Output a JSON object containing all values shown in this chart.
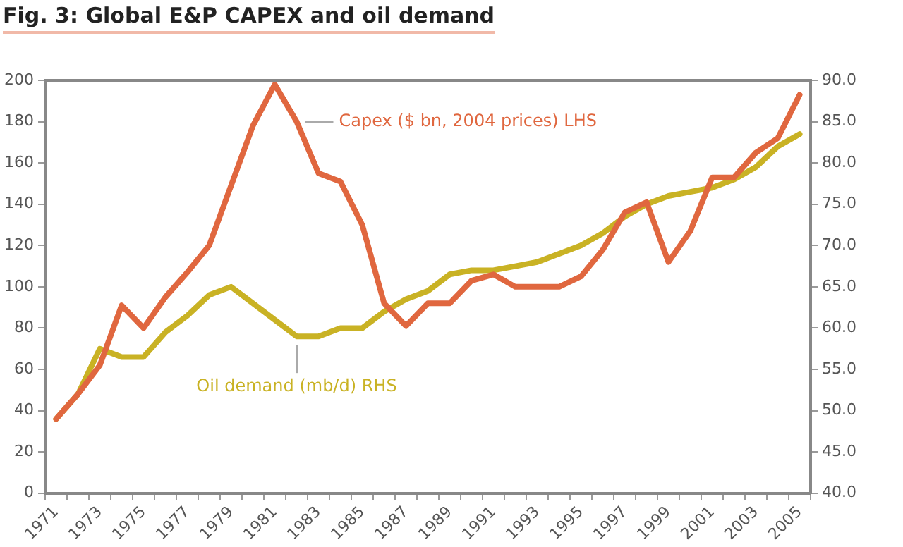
{
  "chart_data": {
    "type": "line",
    "title": "Fig. 3: Global E&P CAPEX and oil demand",
    "categories": [
      "1971",
      null,
      "1973",
      null,
      "1975",
      null,
      "1977",
      null,
      "1979",
      null,
      "1981",
      null,
      "1983",
      null,
      "1985",
      null,
      "1987",
      null,
      "1989",
      null,
      "1991",
      null,
      "1993",
      null,
      "1995",
      null,
      "1997",
      null,
      "1999",
      null,
      "2001",
      null,
      "2003",
      null,
      "2005"
    ],
    "series": [
      {
        "name": "Capex ($ bn, 2004 prices) LHS",
        "color": "#e0673f",
        "axis": "y",
        "values": [
          36,
          48,
          62,
          91,
          80,
          95,
          107,
          120,
          149,
          178,
          198,
          180,
          155,
          151,
          130,
          92,
          81,
          92,
          92,
          103,
          106,
          100,
          100,
          100,
          105,
          118,
          136,
          141,
          112,
          127,
          153,
          153,
          165,
          172,
          193
        ]
      },
      {
        "name": "Oil demand (mb/d) RHS",
        "color": "#c9b224",
        "axis": "y2",
        "values": [
          49,
          52,
          57.5,
          56.5,
          56.5,
          59.5,
          61.5,
          64,
          65,
          63,
          61,
          59,
          59,
          60,
          60,
          62,
          63.5,
          64.5,
          66.5,
          67,
          67,
          67.5,
          68,
          69,
          70,
          71.5,
          73.5,
          75,
          76,
          76.5,
          77,
          78,
          79.5,
          82,
          83.5
        ]
      }
    ],
    "ylim": [
      0,
      200
    ],
    "yticks": [
      0,
      20,
      40,
      60,
      80,
      100,
      120,
      140,
      160,
      180,
      200
    ],
    "y2lim": [
      40,
      90
    ],
    "y2ticks": [
      {
        "value": 40,
        "label": "40.0"
      },
      {
        "value": 45,
        "label": "45.0"
      },
      {
        "value": 50,
        "label": "50.0"
      },
      {
        "value": 55,
        "label": "55.0"
      },
      {
        "value": 60,
        "label": "60.0"
      },
      {
        "value": 65,
        "label": "65.0"
      },
      {
        "value": 70,
        "label": "70.0"
      },
      {
        "value": 75,
        "label": "75.0"
      },
      {
        "value": 80,
        "label": "80.0"
      },
      {
        "value": 85,
        "label": "85.0"
      },
      {
        "value": 90,
        "label": "90.0"
      }
    ],
    "grid": false,
    "legend": false,
    "marker": "none",
    "line_style": "solid"
  }
}
